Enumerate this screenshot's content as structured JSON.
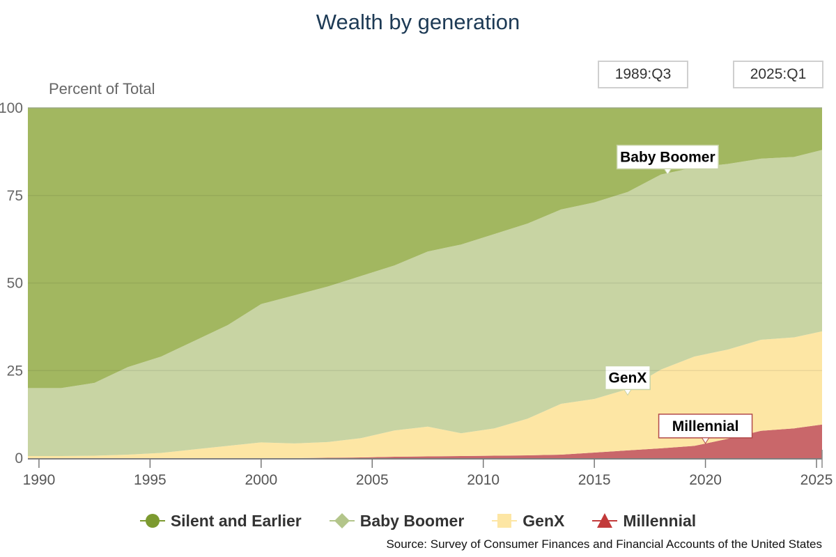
{
  "title": "Wealth by generation",
  "range": {
    "from": "1989:Q3",
    "to": "2025:Q1"
  },
  "source": "Source: Survey of Consumer Finances and Financial Accounts of the United States",
  "chart_data": {
    "type": "area",
    "stacking": "percent",
    "title": "Wealth by generation",
    "ylabel": "Percent of Total",
    "ylim": [
      0,
      100
    ],
    "xlim": [
      1989.5,
      2025.25
    ],
    "x_ticks": [
      1990,
      1995,
      2000,
      2005,
      2010,
      2015,
      2020,
      2025
    ],
    "y_ticks": [
      0,
      25,
      50,
      75,
      100
    ],
    "grid": true,
    "legend_position": "bottom",
    "x": [
      1989.5,
      1991,
      1992.5,
      1994,
      1995.5,
      1997,
      1998.5,
      2000,
      2001.5,
      2003,
      2004.5,
      2006,
      2007.5,
      2009,
      2010.5,
      2012,
      2013.5,
      2015,
      2016.5,
      2018,
      2019.5,
      2021,
      2022.5,
      2024,
      2025.25
    ],
    "series": [
      {
        "name": "Millennial",
        "color": "#c9676a",
        "values": [
          0,
          0,
          0,
          0,
          0,
          0,
          0,
          0,
          0,
          0.1,
          0.2,
          0.4,
          0.5,
          0.6,
          0.7,
          0.8,
          1.0,
          1.6,
          2.2,
          2.8,
          3.5,
          5.5,
          7.8,
          8.5,
          9.6
        ]
      },
      {
        "name": "GenX",
        "color": "#fde6a4",
        "values": [
          0.6,
          0.6,
          0.7,
          1.0,
          1.5,
          2.5,
          3.5,
          4.5,
          4.2,
          4.5,
          5.5,
          7.5,
          8.5,
          6.5,
          7.8,
          10.5,
          14.5,
          15.3,
          17.5,
          22.5,
          25.5,
          25.5,
          26.0,
          26.0,
          26.6
        ]
      },
      {
        "name": "Baby Boomer",
        "color": "#c8d4a3",
        "values": [
          19.4,
          19.4,
          20.8,
          25.0,
          27.5,
          31.0,
          34.5,
          39.5,
          42.3,
          44.4,
          46.3,
          47.1,
          50.0,
          53.9,
          55.5,
          55.7,
          55.5,
          56.1,
          56.3,
          55.7,
          54.0,
          53.0,
          51.7,
          51.5,
          51.8
        ]
      },
      {
        "name": "Silent and Earlier",
        "color": "#a2b760",
        "values": [
          80.0,
          80.0,
          78.5,
          74.0,
          71.0,
          66.5,
          62.0,
          56.0,
          53.5,
          51.0,
          48.0,
          45.0,
          41.0,
          39.0,
          36.0,
          33.0,
          29.0,
          27.0,
          24.0,
          19.0,
          17.0,
          16.0,
          14.5,
          14.0,
          12.0
        ]
      }
    ],
    "annotations": [
      {
        "text": "Baby Boomer",
        "x": 2018.3,
        "y": 81
      },
      {
        "text": "GenX",
        "x": 2016.5,
        "y": 18
      },
      {
        "text": "Millennial",
        "x": 2020.0,
        "y": 4.2
      }
    ]
  },
  "legend": [
    {
      "label": "Silent and Earlier",
      "color": "#7c9a30",
      "symbol": "circle"
    },
    {
      "label": "Baby Boomer",
      "color": "#b3c58a",
      "symbol": "diamond"
    },
    {
      "label": "GenX",
      "color": "#fde6a4",
      "symbol": "square"
    },
    {
      "label": "Millennial",
      "color": "#c23a3a",
      "symbol": "triangle"
    }
  ]
}
